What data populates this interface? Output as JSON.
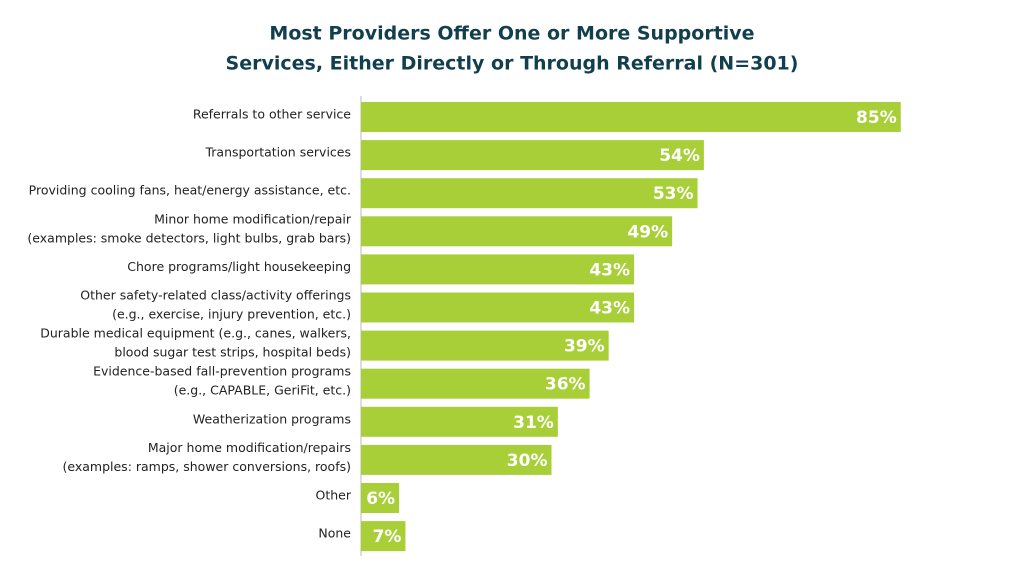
{
  "chart_data": {
    "type": "barh",
    "title": [
      "Most Providers Offer One or More Supportive",
      "Services, Either Directly or Through Referral (N=301)"
    ],
    "categories": [
      [
        "Referrals to other service"
      ],
      [
        "Transportation services"
      ],
      [
        "Providing cooling fans, heat/energy assistance, etc."
      ],
      [
        "Minor home modification/repair",
        "(examples: smoke detectors, light bulbs, grab bars)"
      ],
      [
        "Chore programs/light housekeeping"
      ],
      [
        "Other safety-related class/activity offerings",
        "(e.g., exercise, injury prevention, etc.)"
      ],
      [
        "Durable medical equipment (e.g., canes, walkers,",
        "blood sugar test strips, hospital beds)"
      ],
      [
        "Evidence-based fall-prevention programs",
        "(e.g., CAPABLE, GeriFit, etc.)"
      ],
      [
        "Weatherization programs"
      ],
      [
        "Major home modification/repairs",
        "(examples: ramps, shower conversions, roofs)"
      ],
      [
        "Other"
      ],
      [
        "None"
      ]
    ],
    "values": [
      85,
      54,
      53,
      49,
      43,
      43,
      39,
      36,
      31,
      30,
      6,
      7
    ],
    "value_labels": [
      "85%",
      "54%",
      "53%",
      "49%",
      "43%",
      "43%",
      "39%",
      "36%",
      "31%",
      "30%",
      "6%",
      "7%"
    ],
    "color": "#a8cf38",
    "xlim": [
      0,
      100
    ]
  }
}
